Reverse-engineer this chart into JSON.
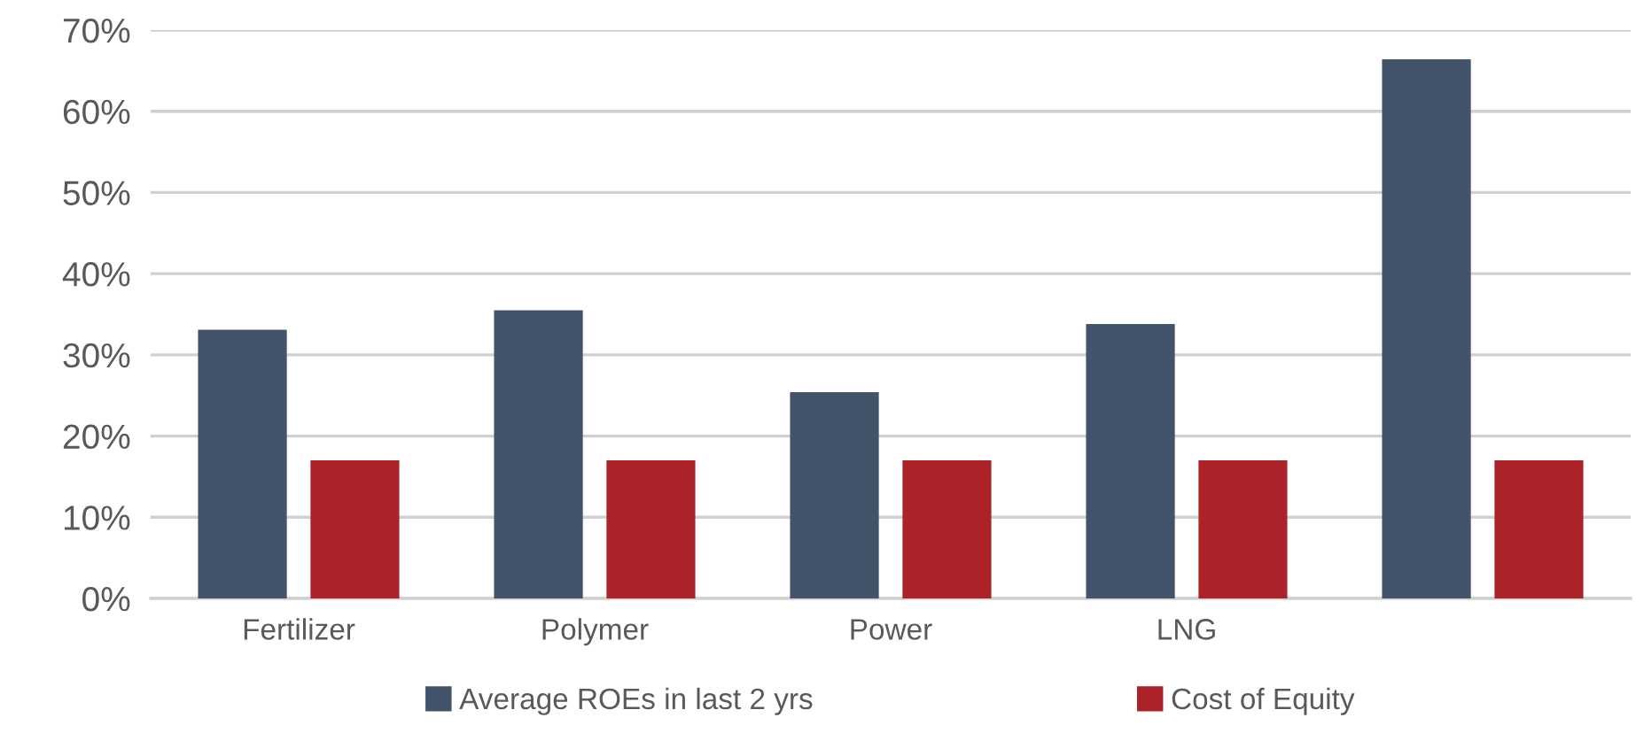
{
  "chart_data": {
    "type": "bar",
    "categories": [
      "Fertilizer",
      "Polymer",
      "Power",
      "LNG",
      null
    ],
    "series": [
      {
        "name": "Average ROEs in last 2 yrs",
        "color": "#435369",
        "values": [
          33.1,
          35.5,
          25.4,
          33.8,
          66.4
        ]
      },
      {
        "name": "Cost of Equity",
        "color": "#ab2328",
        "values": [
          17.0,
          17.0,
          17.0,
          17.0,
          17.0
        ]
      }
    ],
    "ylim": [
      0,
      70
    ],
    "yticks": [
      {
        "value": 0,
        "label": "0%"
      },
      {
        "value": 10,
        "label": "10%"
      },
      {
        "value": 20,
        "label": "20%"
      },
      {
        "value": 30,
        "label": "30%"
      },
      {
        "value": 40,
        "label": "40%"
      },
      {
        "value": 50,
        "label": "50%"
      },
      {
        "value": 60,
        "label": "60%"
      },
      {
        "value": 70,
        "label": "70%"
      }
    ],
    "grid": "y",
    "legend": "bottom"
  }
}
